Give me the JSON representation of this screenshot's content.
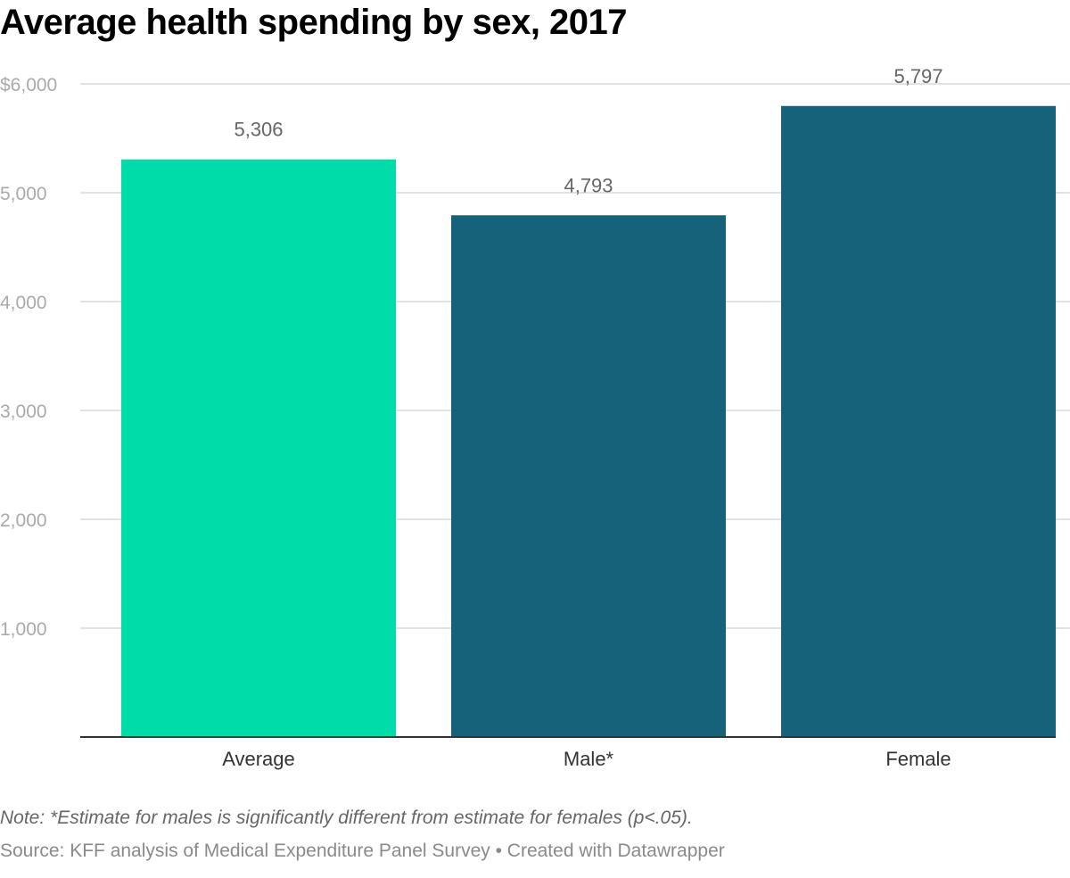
{
  "chart_data": {
    "type": "bar",
    "title": "Average health spending by sex, 2017",
    "categories": [
      "Average",
      "Male*",
      "Female"
    ],
    "values": [
      5306,
      4793,
      5797
    ],
    "value_labels": [
      "5,306",
      "4,793",
      "5,797"
    ],
    "bar_colors": [
      "#00dca9",
      "#17627b",
      "#17627b"
    ],
    "ylim": [
      0,
      6000
    ],
    "yticks": [
      1000,
      2000,
      3000,
      4000,
      5000,
      6000
    ],
    "ytick_labels": [
      "1,000",
      "2,000",
      "3,000",
      "4,000",
      "5,000",
      "$6,000"
    ],
    "grid": true,
    "xlabel": "",
    "ylabel": ""
  },
  "footer": {
    "note": "Note: *Estimate for males is significantly different from estimate for females (p<.05).",
    "source": "Source: KFF analysis of Medical Expenditure Panel Survey • Created with Datawrapper"
  },
  "colors": {
    "grid": "#e2e2e2",
    "axis": "#333333",
    "tick_label": "#aaaaaa",
    "category_label": "#333333",
    "value_label": "#666666"
  }
}
